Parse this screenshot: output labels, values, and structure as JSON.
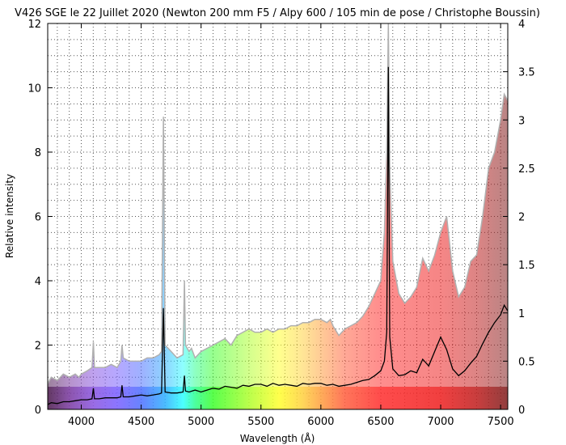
{
  "chart_data": {
    "type": "area",
    "title": "V426 SGE le 22 Juillet 2020 (Newton 200 mm F5 / Alpy 600 / 105 min de pose / Christophe Boussin)",
    "xlabel": "Wavelength (Å)",
    "ylabel": "Relative intensity",
    "xlim": [
      3720,
      7560
    ],
    "ylim": [
      0,
      12
    ],
    "y2lim": [
      0,
      4
    ],
    "grid": true,
    "x_ticks": [
      4000,
      4500,
      5000,
      5500,
      6000,
      6500,
      7000,
      7500
    ],
    "y_ticks": [
      0,
      2,
      4,
      6,
      8,
      10,
      12
    ],
    "y2_ticks": [
      "0",
      "0.5",
      "1",
      "1.5",
      "2",
      "2.5",
      "3",
      "3.5",
      "4"
    ],
    "series": [
      {
        "axis": "left",
        "style": "filled area, gray top edge, rainbow fill by wavelength",
        "x": [
          3720,
          3750,
          3800,
          3850,
          3900,
          3950,
          3980,
          4000,
          4050,
          4090,
          4101,
          4110,
          4150,
          4200,
          4250,
          4300,
          4330,
          4340,
          4350,
          4400,
          4450,
          4500,
          4550,
          4600,
          4650,
          4670,
          4686,
          4700,
          4750,
          4800,
          4850,
          4861,
          4870,
          4900,
          4920,
          4950,
          5000,
          5050,
          5100,
          5150,
          5200,
          5250,
          5300,
          5350,
          5400,
          5450,
          5500,
          5550,
          5600,
          5650,
          5700,
          5750,
          5800,
          5850,
          5900,
          5950,
          6000,
          6050,
          6080,
          6100,
          6150,
          6200,
          6250,
          6300,
          6350,
          6400,
          6450,
          6500,
          6530,
          6550,
          6563,
          6575,
          6600,
          6650,
          6700,
          6750,
          6800,
          6850,
          6900,
          6950,
          7000,
          7050,
          7100,
          7150,
          7200,
          7250,
          7300,
          7350,
          7400,
          7450,
          7500,
          7530,
          7560
        ],
        "y": [
          0.8,
          1.0,
          0.9,
          1.1,
          1.0,
          1.1,
          1.0,
          1.1,
          1.2,
          1.3,
          2.1,
          1.3,
          1.3,
          1.3,
          1.4,
          1.3,
          1.5,
          2.0,
          1.6,
          1.5,
          1.5,
          1.5,
          1.6,
          1.6,
          1.7,
          1.8,
          9.1,
          2.0,
          1.8,
          1.6,
          1.7,
          4.0,
          2.0,
          1.8,
          1.9,
          1.6,
          1.8,
          1.9,
          2.0,
          2.1,
          2.2,
          2.0,
          2.3,
          2.4,
          2.5,
          2.4,
          2.4,
          2.5,
          2.4,
          2.5,
          2.5,
          2.6,
          2.6,
          2.7,
          2.7,
          2.8,
          2.8,
          2.7,
          2.8,
          2.6,
          2.3,
          2.5,
          2.6,
          2.7,
          2.9,
          3.2,
          3.6,
          4.0,
          5.5,
          8.0,
          12.0,
          7.5,
          4.6,
          3.6,
          3.3,
          3.5,
          3.8,
          4.7,
          4.3,
          4.8,
          5.5,
          6.0,
          4.3,
          3.5,
          3.8,
          4.6,
          4.8,
          6.0,
          7.5,
          8.0,
          9.0,
          9.8,
          9.6
        ]
      },
      {
        "axis": "right",
        "style": "black line",
        "x": [
          3720,
          3750,
          3800,
          3850,
          3900,
          3950,
          4000,
          4050,
          4090,
          4101,
          4110,
          4150,
          4200,
          4250,
          4300,
          4330,
          4340,
          4350,
          4400,
          4450,
          4500,
          4550,
          4600,
          4650,
          4670,
          4686,
          4700,
          4750,
          4800,
          4850,
          4861,
          4870,
          4900,
          4950,
          5000,
          5050,
          5100,
          5150,
          5200,
          5250,
          5300,
          5350,
          5400,
          5450,
          5500,
          5550,
          5600,
          5650,
          5700,
          5750,
          5800,
          5850,
          5900,
          5950,
          6000,
          6050,
          6100,
          6150,
          6200,
          6250,
          6300,
          6350,
          6400,
          6450,
          6500,
          6530,
          6550,
          6563,
          6575,
          6600,
          6650,
          6700,
          6750,
          6800,
          6850,
          6900,
          6950,
          7000,
          7050,
          7100,
          7150,
          7200,
          7250,
          7300,
          7350,
          7400,
          7450,
          7500,
          7530,
          7560
        ],
        "y": [
          0.05,
          0.07,
          0.06,
          0.08,
          0.08,
          0.09,
          0.1,
          0.1,
          0.11,
          0.22,
          0.11,
          0.11,
          0.12,
          0.12,
          0.12,
          0.13,
          0.25,
          0.13,
          0.13,
          0.14,
          0.15,
          0.14,
          0.15,
          0.16,
          0.17,
          1.05,
          0.18,
          0.17,
          0.17,
          0.18,
          0.35,
          0.19,
          0.18,
          0.2,
          0.18,
          0.2,
          0.22,
          0.21,
          0.24,
          0.23,
          0.22,
          0.25,
          0.24,
          0.26,
          0.26,
          0.24,
          0.27,
          0.25,
          0.26,
          0.25,
          0.24,
          0.27,
          0.26,
          0.27,
          0.27,
          0.25,
          0.26,
          0.24,
          0.25,
          0.26,
          0.28,
          0.3,
          0.31,
          0.35,
          0.4,
          0.5,
          0.8,
          3.55,
          0.75,
          0.42,
          0.35,
          0.36,
          0.4,
          0.38,
          0.52,
          0.45,
          0.6,
          0.75,
          0.62,
          0.42,
          0.35,
          0.4,
          0.48,
          0.55,
          0.68,
          0.8,
          0.9,
          0.98,
          1.08,
          1.02
        ]
      }
    ]
  }
}
